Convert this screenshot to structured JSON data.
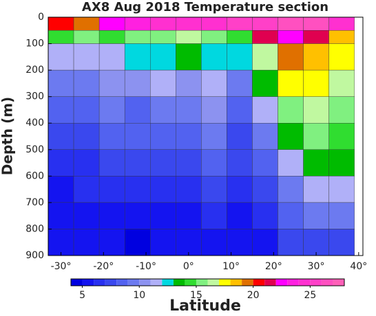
{
  "chart_data": {
    "type": "contour",
    "title": "AX8 Aug 2018 Temperature section",
    "xlabel": "Latitude",
    "ylabel": "Depth (m)",
    "x_edges": [
      -33,
      -27,
      -21,
      -15,
      -9,
      -3,
      3,
      9,
      15,
      21,
      27,
      33,
      39
    ],
    "y_edges": [
      0,
      50,
      100,
      200,
      300,
      400,
      500,
      600,
      700,
      800,
      900
    ],
    "values": [
      [
        20,
        19,
        22,
        23,
        24,
        24,
        24,
        25,
        25,
        26,
        26,
        24
      ],
      [
        14,
        15,
        14,
        15,
        15,
        16,
        15,
        14,
        21,
        22,
        21,
        18
      ],
      [
        11,
        11,
        11,
        12,
        12,
        13,
        12,
        12,
        16,
        19,
        18,
        17
      ],
      [
        9,
        9,
        10,
        10,
        11,
        10,
        11,
        9,
        13,
        17,
        17,
        16
      ],
      [
        8,
        8,
        9,
        8,
        9,
        9,
        10,
        8,
        11,
        15,
        16,
        15
      ],
      [
        7,
        7,
        8,
        8,
        8,
        8,
        9,
        7,
        9,
        13,
        15,
        14
      ],
      [
        6,
        6,
        7,
        7,
        7,
        7,
        8,
        7,
        8,
        11,
        13,
        13
      ],
      [
        5,
        6,
        6,
        6,
        6,
        6,
        7,
        6,
        7,
        9,
        11,
        11
      ],
      [
        5,
        5,
        5,
        5,
        5,
        5,
        6,
        5,
        6,
        8,
        9,
        9
      ],
      [
        5,
        5,
        5,
        4,
        5,
        5,
        5,
        5,
        5,
        7,
        7,
        7
      ]
    ],
    "xlim": [
      -33,
      41
    ],
    "xticks": [
      {
        "value": -30,
        "label": "-30°"
      },
      {
        "value": -20,
        "label": "-20°"
      },
      {
        "value": -10,
        "label": "-10°"
      },
      {
        "value": 0,
        "label": "0°"
      },
      {
        "value": 10,
        "label": "10°"
      },
      {
        "value": 20,
        "label": "20°"
      },
      {
        "value": 30,
        "label": "30°"
      },
      {
        "value": 40,
        "label": "40°"
      }
    ],
    "ylim": [
      0,
      900
    ],
    "y_reversed": true,
    "yticks": [
      0,
      100,
      200,
      300,
      400,
      500,
      600,
      700,
      800,
      900
    ],
    "levels": [
      4,
      5,
      6,
      7,
      8,
      9,
      10,
      11,
      12,
      13,
      14,
      15,
      16,
      17,
      18,
      19,
      20,
      21,
      22,
      23,
      24,
      25,
      26,
      27,
      28
    ],
    "level_colors": [
      "#0000e0",
      "#1414f0",
      "#2830f0",
      "#3a48ee",
      "#5262f0",
      "#6c7af0",
      "#8c92f0",
      "#b0b0f8",
      "#00d8e0",
      "#00bb00",
      "#30dd30",
      "#80f080",
      "#c0f8a0",
      "#ffff00",
      "#ffc000",
      "#e07000",
      "#ff0000",
      "#e00050",
      "#ff00ff",
      "#ff20e0",
      "#ff30d0",
      "#ff40c8",
      "#ff50c0",
      "#ff60b8"
    ],
    "cticks": [
      5,
      10,
      15,
      20,
      25
    ]
  }
}
